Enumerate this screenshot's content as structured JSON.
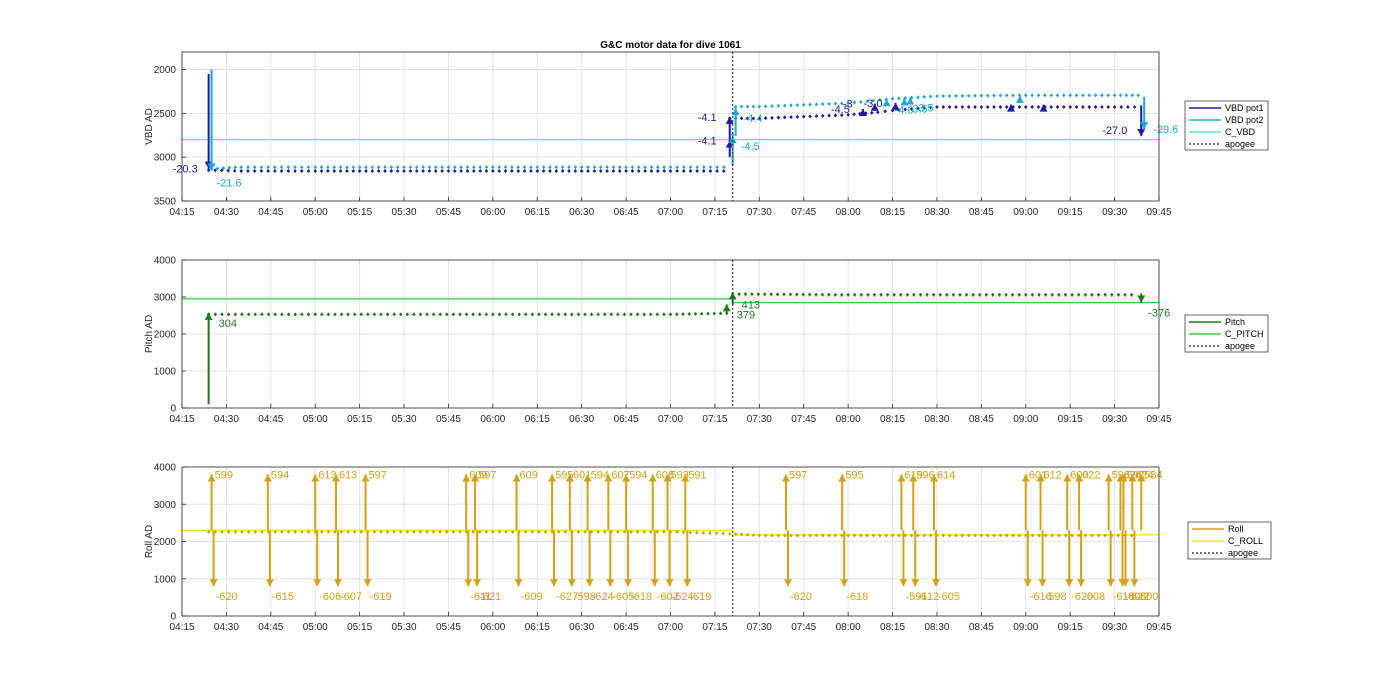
{
  "chart_data": [
    {
      "type": "line",
      "title": "G&C motor data for dive 1061",
      "ylabel": "VBD AD",
      "ylim": [
        1800,
        3500
      ],
      "y_reversed": true,
      "yticks": [
        2000,
        2500,
        3000,
        3500
      ],
      "xlim": [
        "04:15",
        "09:45"
      ],
      "xticks": [
        "04:15",
        "04:30",
        "04:45",
        "05:00",
        "05:15",
        "05:30",
        "05:45",
        "06:00",
        "06:15",
        "06:30",
        "06:45",
        "07:00",
        "07:15",
        "07:30",
        "07:45",
        "08:00",
        "08:15",
        "08:30",
        "08:45",
        "09:00",
        "09:15",
        "09:30",
        "09:45"
      ],
      "apogee": "07:21",
      "grid": true,
      "legend_position": "right",
      "legend": [
        {
          "label": "VBD pot1",
          "color": "#1a1aa6",
          "dash": false
        },
        {
          "label": "VBD pot2",
          "color": "#1ea7d9",
          "dash": false
        },
        {
          "label": "C_VBD",
          "color": "#5fe0e0",
          "dash": false
        },
        {
          "label": "apogee",
          "color": "#404040",
          "dash": true
        }
      ],
      "constants": [
        {
          "name": "C_VBD",
          "y": 2800,
          "color": "#5fe0e0"
        }
      ],
      "series": [
        {
          "name": "VBD pot1",
          "color": "#1a1aa6",
          "points": [
            [
              "04:24",
              3130
            ],
            [
              "04:35",
              3140
            ],
            [
              "05:00",
              3140
            ],
            [
              "05:30",
              3140
            ],
            [
              "06:00",
              3140
            ],
            [
              "06:30",
              3140
            ],
            [
              "07:00",
              3140
            ],
            [
              "07:18",
              3140
            ],
            [
              "07:20",
              2810
            ],
            [
              "07:20",
              2540
            ],
            [
              "07:30",
              2540
            ],
            [
              "08:00",
              2500
            ],
            [
              "08:10",
              2470
            ],
            [
              "08:15",
              2450
            ],
            [
              "08:30",
              2410
            ],
            [
              "09:00",
              2410
            ],
            [
              "09:30",
              2410
            ],
            [
              "09:39",
              2410
            ]
          ]
        },
        {
          "name": "VBD pot2",
          "color": "#1ea7d9",
          "points": [
            [
              "04:25",
              3150
            ],
            [
              "04:35",
              3130
            ],
            [
              "05:00",
              3130
            ],
            [
              "05:30",
              3130
            ],
            [
              "06:00",
              3130
            ],
            [
              "06:30",
              3130
            ],
            [
              "07:00",
              3130
            ],
            [
              "07:18",
              3130
            ],
            [
              "07:21",
              2760
            ],
            [
              "07:22",
              2440
            ],
            [
              "07:30",
              2440
            ],
            [
              "08:00",
              2400
            ],
            [
              "08:15",
              2350
            ],
            [
              "08:30",
              2320
            ],
            [
              "09:00",
              2310
            ],
            [
              "09:30",
              2310
            ],
            [
              "09:40",
              2310
            ]
          ]
        }
      ],
      "events": [
        {
          "t": "04:24",
          "from": 2050,
          "to": 3130,
          "color": "#1a1aa6",
          "label": "-20.3"
        },
        {
          "t": "04:25",
          "from": 2000,
          "to": 3150,
          "color": "#1ea7d9",
          "label": "-21.6"
        },
        {
          "t": "07:20",
          "from": 3000,
          "to": 2810,
          "color": "#1a1aa6",
          "label": "-4.1"
        },
        {
          "t": "07:20",
          "from": 2810,
          "to": 2540,
          "color": "#1a1aa6",
          "label": "-4.1"
        },
        {
          "t": "07:21",
          "from": 3100,
          "to": 2760,
          "color": "#1ea7d9",
          "label": "-4.5"
        },
        {
          "t": "07:22",
          "from": 2760,
          "to": 2440,
          "color": "#1ea7d9",
          "label": "-4.4"
        },
        {
          "t": "08:05",
          "from": 2520,
          "to": 2450,
          "color": "#1a1aa6",
          "label": "-4.5"
        },
        {
          "t": "08:09",
          "from": 2440,
          "to": 2390,
          "color": "#1a1aa6",
          "label": "-3"
        },
        {
          "t": "08:16",
          "from": 2420,
          "to": 2380,
          "color": "#1a1aa6",
          "label": "-3.0"
        },
        {
          "t": "08:13",
          "from": 2400,
          "to": 2340,
          "color": "#1ea7d9",
          "label": "-4.0"
        },
        {
          "t": "08:19",
          "from": 2390,
          "to": 2330,
          "color": "#1ea7d9",
          "label": "3.5"
        },
        {
          "t": "08:21",
          "from": 2380,
          "to": 2320,
          "color": "#1ea7d9",
          "label": "3.5"
        },
        {
          "t": "08:55",
          "from": 2420,
          "to": 2400,
          "color": "#1a1aa6",
          "label": ""
        },
        {
          "t": "08:58",
          "from": 2340,
          "to": 2300,
          "color": "#1ea7d9",
          "label": ""
        },
        {
          "t": "09:06",
          "from": 2420,
          "to": 2400,
          "color": "#1a1aa6",
          "label": ""
        },
        {
          "t": "09:39",
          "from": 2410,
          "to": 2760,
          "color": "#1a1aa6",
          "label": "-27.0"
        },
        {
          "t": "09:40",
          "from": 2310,
          "to": 2680,
          "color": "#1ea7d9",
          "label": "-29.6"
        }
      ]
    },
    {
      "type": "line",
      "ylabel": "Pitch AD",
      "ylim": [
        0,
        4000
      ],
      "yticks": [
        0,
        1000,
        2000,
        3000,
        4000
      ],
      "xlim": [
        "04:15",
        "09:45"
      ],
      "xticks": [
        "04:15",
        "04:30",
        "04:45",
        "05:00",
        "05:15",
        "05:30",
        "05:45",
        "06:00",
        "06:15",
        "06:30",
        "06:45",
        "07:00",
        "07:15",
        "07:30",
        "07:45",
        "08:00",
        "08:15",
        "08:30",
        "08:45",
        "09:00",
        "09:15",
        "09:30",
        "09:45"
      ],
      "apogee": "07:21",
      "grid": true,
      "legend_position": "right",
      "legend": [
        {
          "label": "Pitch",
          "color": "#1f7a1f",
          "dash": false
        },
        {
          "label": "C_PITCH",
          "color": "#3ccc3c",
          "dash": false
        },
        {
          "label": "apogee",
          "color": "#404040",
          "dash": true
        }
      ],
      "constants": [
        {
          "name": "C_PITCH",
          "y": 2950,
          "color": "#3ccc3c",
          "from": "04:15",
          "to": "07:21"
        },
        {
          "name": "C_PITCH",
          "y": 2850,
          "color": "#3ccc3c",
          "from": "07:21",
          "to": "09:45"
        }
      ],
      "series": [
        {
          "name": "Pitch",
          "color": "#1f7a1f",
          "points": [
            [
              "04:24",
              2570
            ],
            [
              "05:00",
              2570
            ],
            [
              "06:00",
              2570
            ],
            [
              "07:00",
              2570
            ],
            [
              "07:19",
              2600
            ],
            [
              "07:21",
              3120
            ],
            [
              "08:00",
              3100
            ],
            [
              "09:00",
              3100
            ],
            [
              "09:38",
              3100
            ]
          ]
        }
      ],
      "events": [
        {
          "t": "04:24",
          "from": 100,
          "to": 2570,
          "color": "#1f7a1f",
          "label": "304"
        },
        {
          "t": "07:19",
          "from": 2600,
          "to": 2800,
          "color": "#1f7a1f",
          "label": "379"
        },
        {
          "t": "07:21",
          "from": 2800,
          "to": 3120,
          "color": "#1f7a1f",
          "label": "413"
        },
        {
          "t": "09:39",
          "from": 3100,
          "to": 2850,
          "color": "#1f7a1f",
          "label": "-376"
        }
      ]
    },
    {
      "type": "line",
      "ylabel": "Roll AD",
      "ylim": [
        0,
        4000
      ],
      "yticks": [
        0,
        1000,
        2000,
        3000,
        4000
      ],
      "xlim": [
        "04:15",
        "09:45"
      ],
      "xticks": [
        "04:15",
        "04:30",
        "04:45",
        "05:00",
        "05:15",
        "05:30",
        "05:45",
        "06:00",
        "06:15",
        "06:30",
        "06:45",
        "07:00",
        "07:15",
        "07:30",
        "07:45",
        "08:00",
        "08:15",
        "08:30",
        "08:45",
        "09:00",
        "09:15",
        "09:30",
        "09:45"
      ],
      "apogee": "07:21",
      "grid": true,
      "legend_position": "right",
      "legend": [
        {
          "label": "Roll",
          "color": "#d4a017",
          "dash": false
        },
        {
          "label": "C_ROLL",
          "color": "#f2e233",
          "dash": false
        },
        {
          "label": "apogee",
          "color": "#404040",
          "dash": true
        }
      ],
      "constants": [
        {
          "name": "C_ROLL",
          "y": 2300,
          "color": "#f2e233",
          "from": "04:15",
          "to": "07:21"
        },
        {
          "name": "C_ROLL",
          "y": 2180,
          "color": "#f2e233",
          "from": "07:21",
          "to": "09:45"
        }
      ],
      "series": [
        {
          "name": "Roll",
          "color": "#d4a017",
          "points": [
            [
              "04:24",
              2300
            ],
            [
              "05:00",
              2300
            ],
            [
              "06:00",
              2300
            ],
            [
              "07:00",
              2300
            ],
            [
              "07:20",
              2250
            ],
            [
              "07:30",
              2200
            ],
            [
              "08:00",
              2200
            ],
            [
              "08:30",
              2200
            ],
            [
              "09:00",
              2200
            ],
            [
              "09:38",
              2200
            ]
          ]
        }
      ],
      "roll_events": [
        {
          "t": "04:25",
          "up": 599,
          "down": -620
        },
        {
          "t": "04:44",
          "up": 594,
          "down": -615
        },
        {
          "t": "05:00",
          "up": 613,
          "down": -606
        },
        {
          "t": "05:07",
          "up": 613,
          "down": -607
        },
        {
          "t": "05:17",
          "up": 597,
          "down": -619
        },
        {
          "t": "05:51",
          "up": 609,
          "down": -611
        },
        {
          "t": "05:54",
          "up": 597,
          "down": -621
        },
        {
          "t": "06:08",
          "up": 609,
          "down": -609
        },
        {
          "t": "06:20",
          "up": 595,
          "down": -627
        },
        {
          "t": "06:26",
          "up": 601,
          "down": -598
        },
        {
          "t": "06:32",
          "up": 594,
          "down": -624
        },
        {
          "t": "06:39",
          "up": 607,
          "down": -605
        },
        {
          "t": "06:45",
          "up": 594,
          "down": -618
        },
        {
          "t": "06:54",
          "up": 608,
          "down": -602
        },
        {
          "t": "06:59",
          "up": 593,
          "down": -624
        },
        {
          "t": "07:05",
          "up": 591,
          "down": -619
        },
        {
          "t": "07:39",
          "up": 597,
          "down": -620
        },
        {
          "t": "07:58",
          "up": 595,
          "down": -618
        },
        {
          "t": "08:18",
          "up": 619,
          "down": -591
        },
        {
          "t": "08:22",
          "up": 596,
          "down": -612
        },
        {
          "t": "08:29",
          "up": 614,
          "down": -605
        },
        {
          "t": "09:00",
          "up": 601,
          "down": -616
        },
        {
          "t": "09:05",
          "up": 612,
          "down": -598
        },
        {
          "t": "09:14",
          "up": 600,
          "down": -620
        },
        {
          "t": "09:18",
          "up": 622,
          "down": -608
        },
        {
          "t": "09:28",
          "up": 596,
          "down": -618
        },
        {
          "t": "09:32",
          "up": 624,
          "down": -606
        },
        {
          "t": "09:33",
          "up": 597,
          "down": -622
        },
        {
          "t": "09:36",
          "up": 624,
          "down": -600
        },
        {
          "t": "09:39",
          "up": 584,
          "down": ""
        }
      ]
    }
  ]
}
